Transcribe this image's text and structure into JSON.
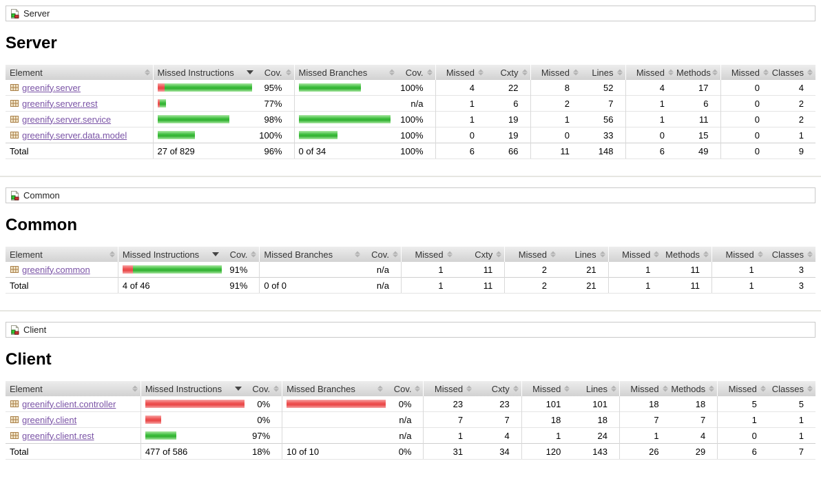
{
  "page": {
    "sort": {
      "column": "Missed Instructions",
      "direction": "desc",
      "column_index": 1
    }
  },
  "columns": [
    "Element",
    "Missed Instructions",
    "Cov.",
    "Missed Branches",
    "Cov.",
    "Missed",
    "Cxty",
    "Missed",
    "Lines",
    "Missed",
    "Methods",
    "Missed",
    "Classes"
  ],
  "colors": {
    "link": "#7a53a6",
    "bar_green": "#3ebe3e",
    "bar_red": "#ee5252",
    "header_bg": "#d9d9d9"
  },
  "sections": [
    {
      "breadcrumb": "Server",
      "title": "Server",
      "rows": [
        {
          "element": "greenify.server",
          "instr_bar": {
            "red": 10,
            "green": 127
          },
          "instr_cov": "95%",
          "branch_bar": {
            "red": 0,
            "green": 90
          },
          "branch_cov": "100%",
          "counters": [
            "4",
            "22",
            "8",
            "52",
            "4",
            "17",
            "0",
            "4"
          ]
        },
        {
          "element": "greenify.server.rest",
          "instr_bar": {
            "red": 3,
            "green": 9
          },
          "instr_cov": "77%",
          "branch_bar": null,
          "branch_cov": "n/a",
          "counters": [
            "1",
            "6",
            "2",
            "7",
            "1",
            "6",
            "0",
            "2"
          ]
        },
        {
          "element": "greenify.server.service",
          "instr_bar": {
            "red": 0,
            "green": 104
          },
          "instr_cov": "98%",
          "branch_bar": {
            "red": 0,
            "green": 133
          },
          "branch_cov": "100%",
          "counters": [
            "1",
            "19",
            "1",
            "56",
            "1",
            "11",
            "0",
            "2"
          ]
        },
        {
          "element": "greenify.server.data.model",
          "instr_bar": {
            "red": 0,
            "green": 54
          },
          "instr_cov": "100%",
          "branch_bar": {
            "red": 0,
            "green": 56
          },
          "branch_cov": "100%",
          "counters": [
            "0",
            "19",
            "0",
            "33",
            "0",
            "15",
            "0",
            "1"
          ]
        }
      ],
      "total": {
        "label": "Total",
        "instr": "27 of 829",
        "instr_cov": "96%",
        "branch": "0 of 34",
        "branch_cov": "100%",
        "counters": [
          "6",
          "66",
          "11",
          "148",
          "6",
          "49",
          "0",
          "9"
        ]
      }
    },
    {
      "breadcrumb": "Common",
      "title": "Common",
      "rows": [
        {
          "element": "greenify.common",
          "instr_bar": {
            "red": 15,
            "green": 140
          },
          "instr_cov": "91%",
          "branch_bar": null,
          "branch_cov": "n/a",
          "counters": [
            "1",
            "11",
            "2",
            "21",
            "1",
            "11",
            "1",
            "3"
          ]
        }
      ],
      "total": {
        "label": "Total",
        "instr": "4 of 46",
        "instr_cov": "91%",
        "branch": "0 of 0",
        "branch_cov": "n/a",
        "counters": [
          "1",
          "11",
          "2",
          "21",
          "1",
          "11",
          "1",
          "3"
        ]
      }
    },
    {
      "breadcrumb": "Client",
      "title": "Client",
      "rows": [
        {
          "element": "greenify.client.controller",
          "instr_bar": {
            "red": 144,
            "green": 0
          },
          "instr_cov": "0%",
          "branch_bar": {
            "red": 144,
            "green": 0
          },
          "branch_cov": "0%",
          "counters": [
            "23",
            "23",
            "101",
            "101",
            "18",
            "18",
            "5",
            "5"
          ]
        },
        {
          "element": "greenify.client",
          "instr_bar": {
            "red": 23,
            "green": 0
          },
          "instr_cov": "0%",
          "branch_bar": null,
          "branch_cov": "n/a",
          "counters": [
            "7",
            "7",
            "18",
            "18",
            "7",
            "7",
            "1",
            "1"
          ]
        },
        {
          "element": "greenify.client.rest",
          "instr_bar": {
            "red": 0,
            "green": 45
          },
          "instr_cov": "97%",
          "branch_bar": null,
          "branch_cov": "n/a",
          "counters": [
            "1",
            "4",
            "1",
            "24",
            "1",
            "4",
            "0",
            "1"
          ]
        }
      ],
      "total": {
        "label": "Total",
        "instr": "477 of 586",
        "instr_cov": "18%",
        "branch": "10 of 10",
        "branch_cov": "0%",
        "counters": [
          "31",
          "34",
          "120",
          "143",
          "26",
          "29",
          "6",
          "7"
        ]
      }
    }
  ]
}
